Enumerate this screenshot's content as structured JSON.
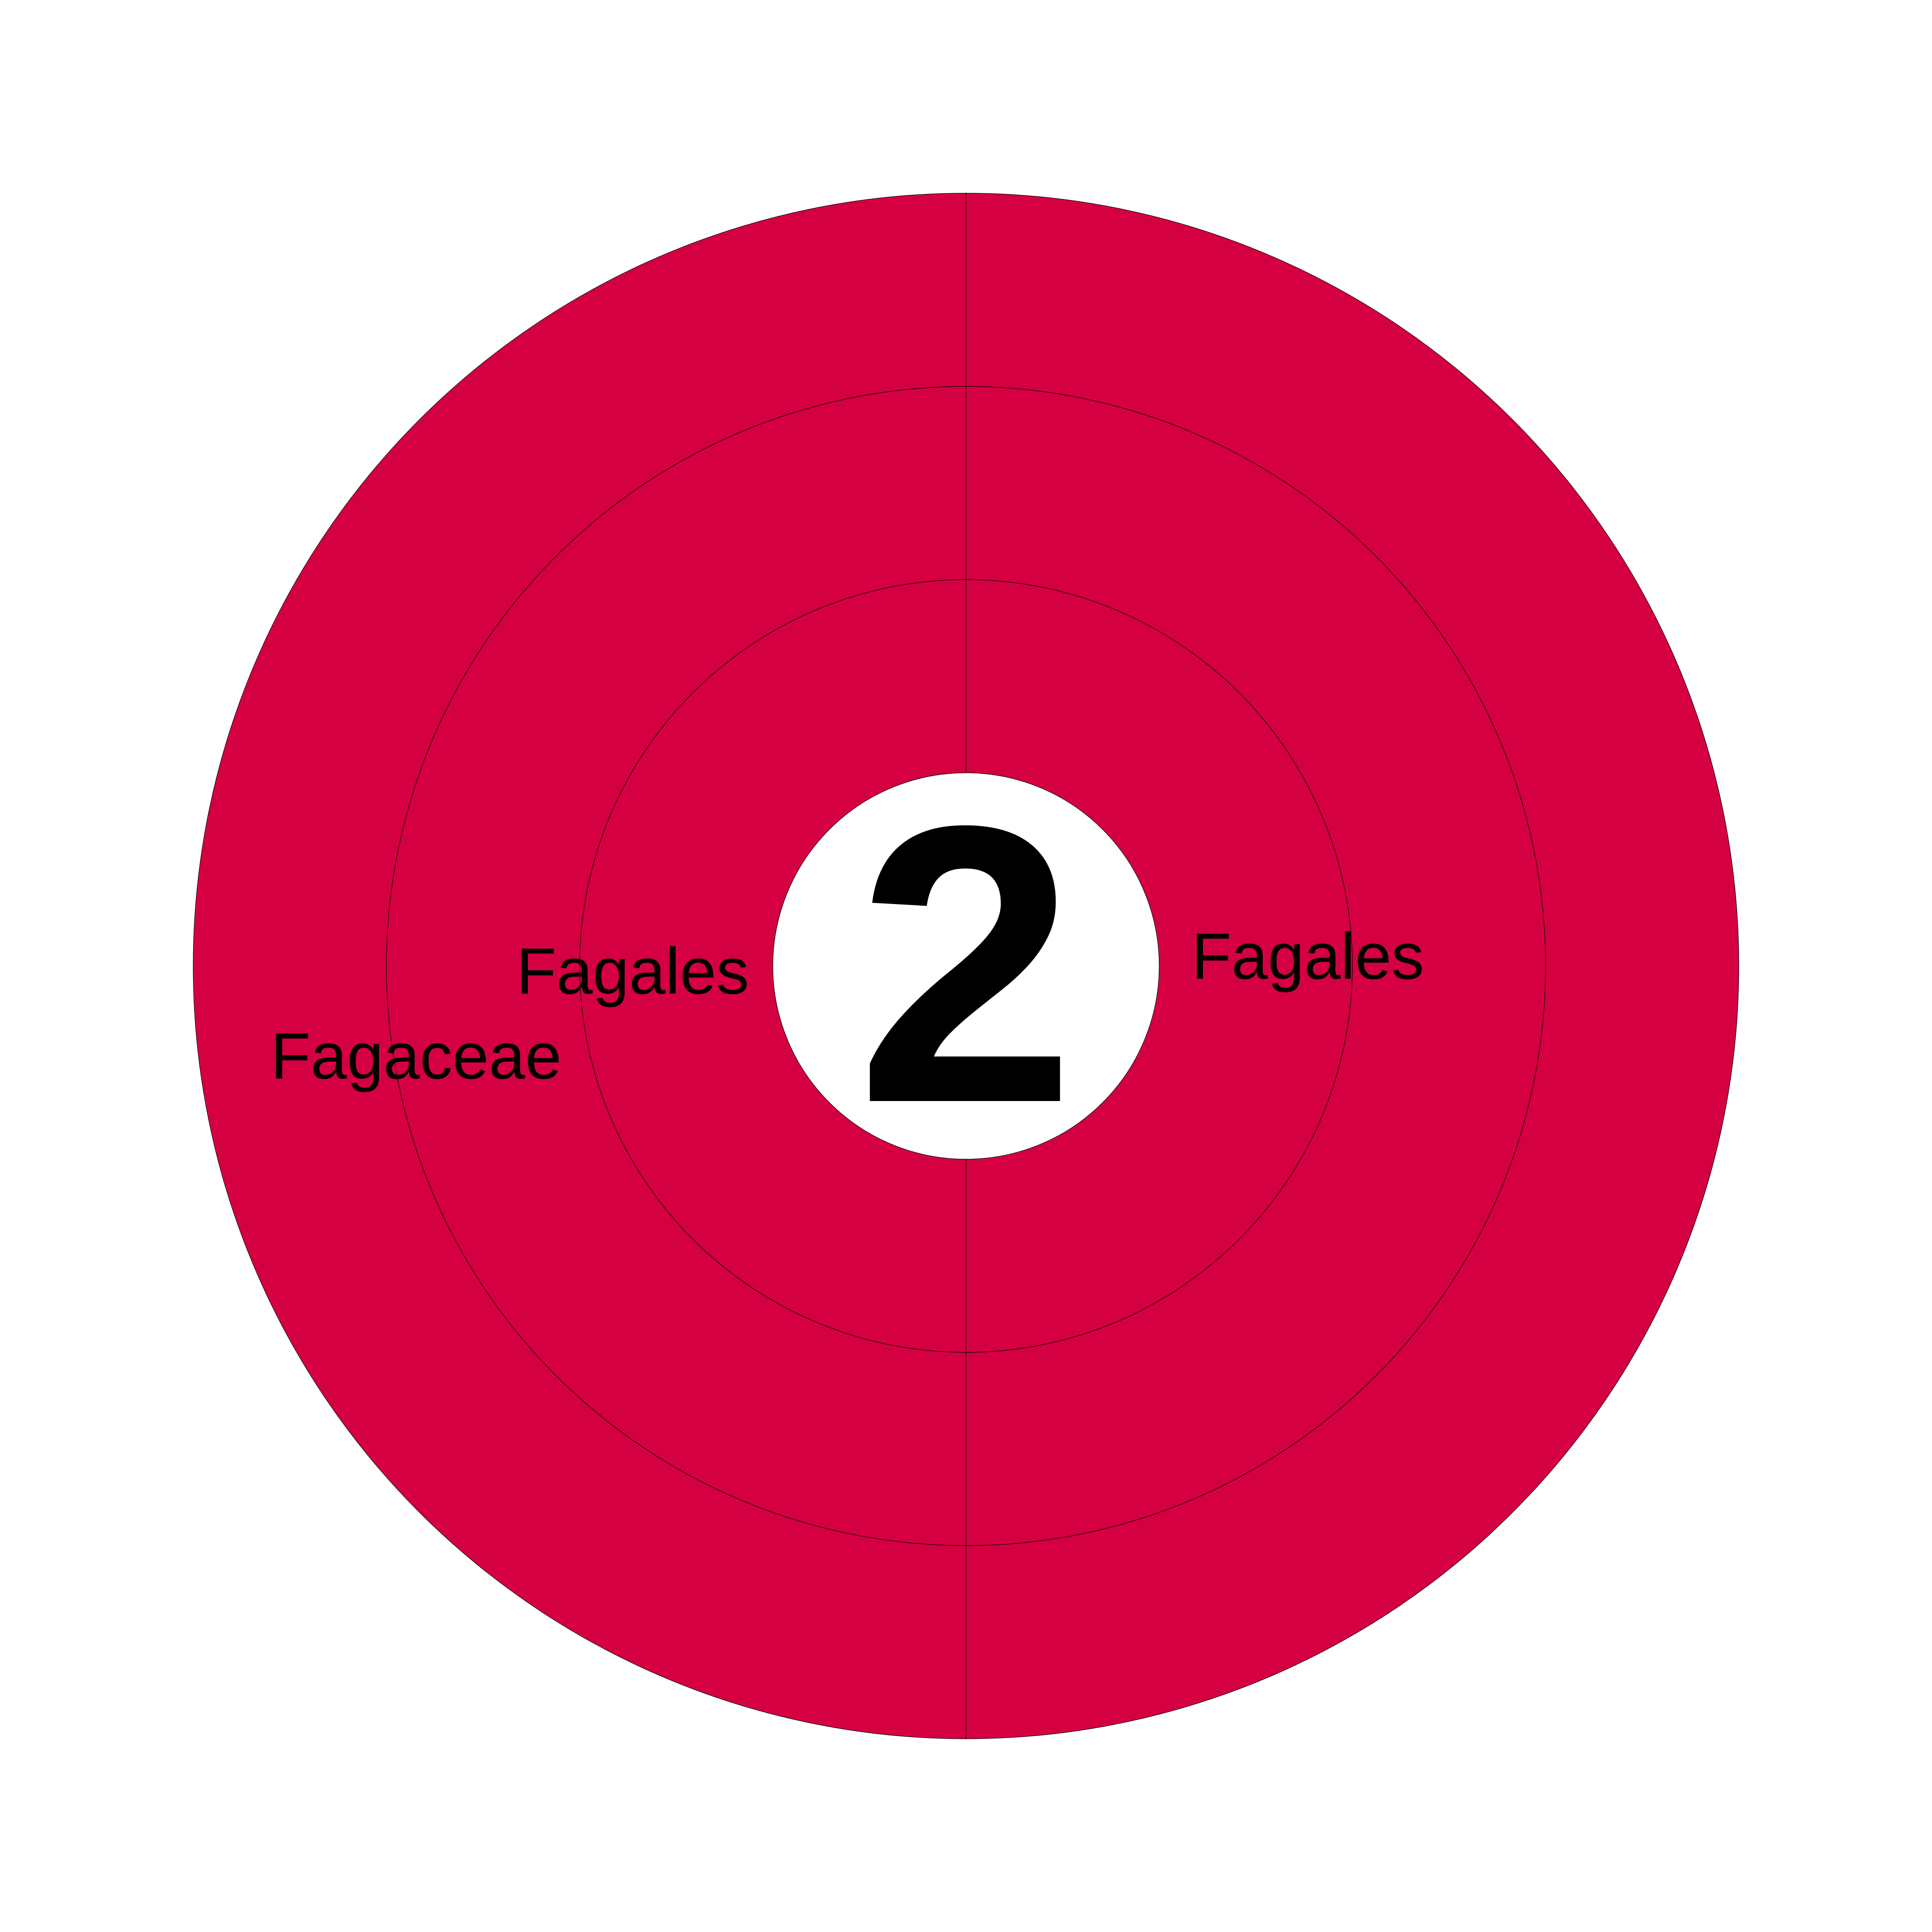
{
  "chart_data": {
    "type": "sunburst",
    "center_label": "2",
    "ring_color": "#d50041",
    "rings": [
      {
        "level": 1,
        "segments": [
          {
            "label": "Fagales",
            "value": 1
          },
          {
            "label": "Fagales",
            "value": 1
          }
        ]
      },
      {
        "level": 2,
        "segments": [
          {
            "label": "",
            "value": 1
          },
          {
            "label": "",
            "value": 1
          }
        ]
      },
      {
        "level": 3,
        "segments": [
          {
            "label": "Fagaceae",
            "value": 1
          },
          {
            "label": "",
            "value": 1
          }
        ]
      }
    ]
  }
}
